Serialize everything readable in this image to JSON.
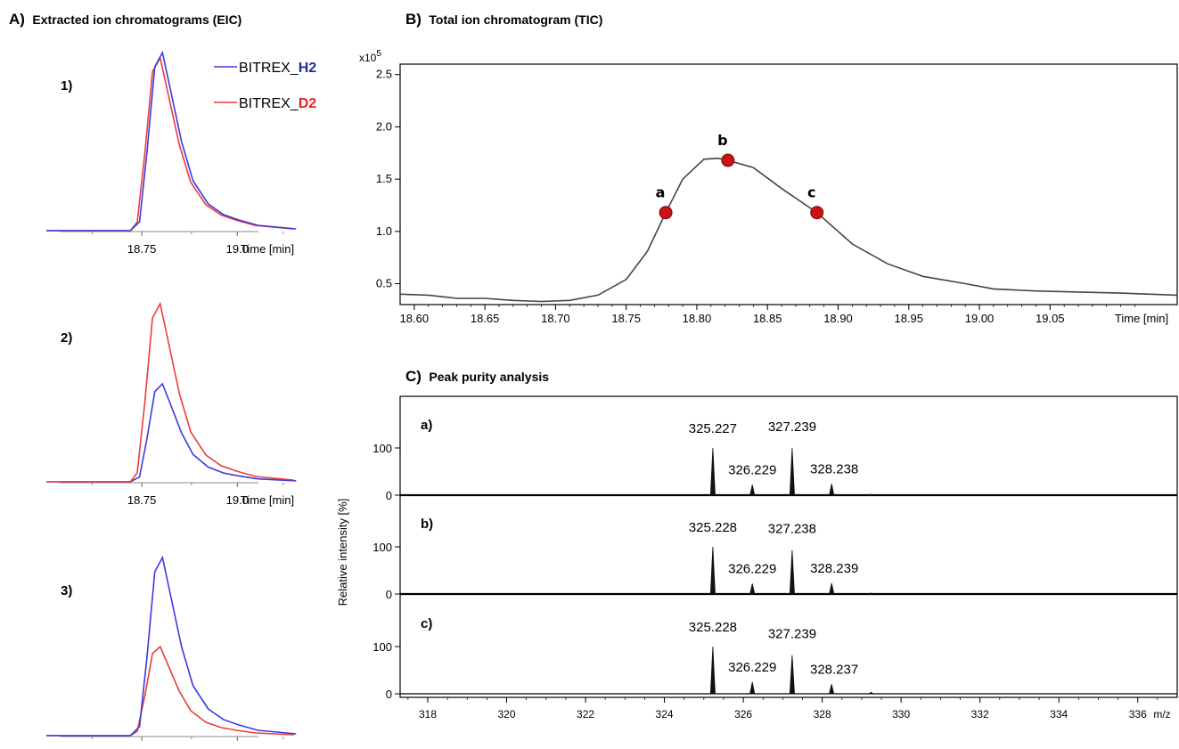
{
  "panelA": {
    "letter": "A)",
    "title": "Extracted ion chromatograms (EIC)",
    "legend": [
      {
        "prefix": "BITREX_",
        "suffix": "H2",
        "color": "#3a3ae0",
        "suffix_color": "#1f2f8f"
      },
      {
        "prefix": "BITREX_",
        "suffix": "D2",
        "color": "#ef3a3a",
        "suffix_color": "#e82020"
      }
    ],
    "xticks": [
      "18.75",
      "19.0"
    ],
    "xlabel": "Time [min]",
    "subplots": [
      {
        "label": "1)",
        "h2_peak": 1.0,
        "d2_peak": 0.97
      },
      {
        "label": "2)",
        "h2_peak": 0.55,
        "d2_peak": 1.0
      },
      {
        "label": "3)",
        "h2_peak": 1.0,
        "d2_peak": 0.5
      }
    ]
  },
  "panelB": {
    "letter": "B)",
    "title": "Total ion chromatogram (TIC)",
    "multiplier": "x10",
    "multiplier_exp": "5",
    "xlabel": "Time [min]"
  },
  "panelC": {
    "letter": "C)",
    "title": "Peak purity analysis",
    "ylabel": "Relative intensity [%]",
    "xlabel": "m/z",
    "ytick_top": "100",
    "ytick_bottom": "0"
  },
  "chart_data": [
    {
      "type": "line",
      "title": "Extracted ion chromatograms (EIC)",
      "xlabel": "Time [min]",
      "xticks": [
        18.75,
        19.0
      ],
      "xlim": [
        18.5,
        19.2
      ],
      "series": [
        {
          "name": "BITREX_H2",
          "color": "#3a3ae0"
        },
        {
          "name": "BITREX_D2",
          "color": "#ef3a3a"
        }
      ],
      "subplots": [
        "1)",
        "2)",
        "3)"
      ],
      "x": [
        18.5,
        18.72,
        18.74,
        18.76,
        18.78,
        18.8,
        18.82,
        18.85,
        18.88,
        18.92,
        18.96,
        19.0,
        19.05,
        19.1,
        19.15
      ],
      "shape": [
        0.0,
        0.0,
        0.05,
        0.45,
        0.92,
        1.0,
        0.8,
        0.5,
        0.28,
        0.15,
        0.09,
        0.06,
        0.03,
        0.02,
        0.01
      ]
    },
    {
      "type": "line",
      "title": "Total ion chromatogram (TIC)",
      "xlabel": "Time [min]",
      "ylabel": "",
      "xlim": [
        18.59,
        19.14
      ],
      "ylim": [
        0.3,
        2.6
      ],
      "y_multiplier": "x10^5",
      "xticks": [
        18.6,
        18.65,
        18.7,
        18.75,
        18.8,
        18.85,
        18.9,
        18.95,
        19.0,
        19.05
      ],
      "yticks": [
        0.5,
        1.0,
        1.5,
        2.0,
        2.5
      ],
      "x": [
        18.59,
        18.61,
        18.63,
        18.65,
        18.67,
        18.69,
        18.71,
        18.73,
        18.75,
        18.765,
        18.778,
        18.79,
        18.805,
        18.815,
        18.822,
        18.84,
        18.86,
        18.885,
        18.91,
        18.935,
        18.96,
        18.99,
        19.01,
        19.04,
        19.07,
        19.1,
        19.14
      ],
      "y": [
        0.4,
        0.39,
        0.36,
        0.36,
        0.34,
        0.33,
        0.34,
        0.39,
        0.54,
        0.81,
        1.18,
        1.5,
        1.69,
        1.7,
        1.68,
        1.61,
        1.41,
        1.18,
        0.88,
        0.69,
        0.57,
        0.5,
        0.45,
        0.43,
        0.42,
        0.41,
        0.39
      ],
      "points": [
        {
          "label": "a",
          "x": 18.778,
          "y": 1.18
        },
        {
          "label": "b",
          "x": 18.822,
          "y": 1.68
        },
        {
          "label": "c",
          "x": 18.885,
          "y": 1.18
        }
      ]
    },
    {
      "type": "bar",
      "title": "Peak purity analysis",
      "xlabel": "m/z",
      "ylabel": "Relative intensity [%]",
      "xlim": [
        317.3,
        337.0
      ],
      "xticks": [
        318,
        320,
        322,
        324,
        326,
        328,
        330,
        332,
        334,
        336
      ],
      "yticks": [
        0,
        100
      ],
      "spectra": [
        {
          "label": "a)",
          "mz": [
            325.227,
            326.229,
            327.239,
            328.238,
            329.24
          ],
          "intensity": [
            100,
            22,
            100,
            24,
            2
          ],
          "labels": [
            "325.227",
            "326.229",
            "327.239",
            "328.238",
            null
          ]
        },
        {
          "label": "b)",
          "mz": [
            325.228,
            326.229,
            327.238,
            328.239,
            329.24
          ],
          "intensity": [
            100,
            22,
            93,
            23,
            2
          ],
          "labels": [
            "325.228",
            "326.229",
            "327.238",
            "328.239",
            null
          ]
        },
        {
          "label": "c)",
          "mz": [
            325.228,
            326.229,
            327.239,
            328.237,
            329.24
          ],
          "intensity": [
            100,
            25,
            82,
            20,
            3
          ],
          "labels": [
            "325.228",
            "326.229",
            "327.239",
            "328.237",
            null
          ]
        }
      ]
    }
  ]
}
